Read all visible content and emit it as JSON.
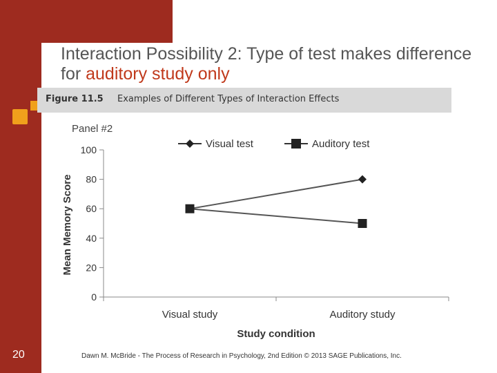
{
  "slide": {
    "title_part1": "Interaction Possibility 2: Type of test makes difference for ",
    "title_accent": "auditory study only",
    "figure_label": "Figure 11.5",
    "figure_caption": "Examples of Different Types of Interaction Effects",
    "page_number": "20",
    "footer": "Dawn M. McBride - The Process of Research in Psychology, 2nd Edition © 2013 SAGE Publications, Inc."
  },
  "colors": {
    "sidebar": "#9e2b1f",
    "bullet": "#f0a01c",
    "accent": "#c0391b"
  },
  "chart_data": {
    "type": "line",
    "panel_label": "Panel #2",
    "categories": [
      "Visual study",
      "Auditory study"
    ],
    "series": [
      {
        "name": "Visual test",
        "marker": "diamond",
        "values": [
          60,
          80
        ]
      },
      {
        "name": "Auditory test",
        "marker": "square",
        "values": [
          60,
          50
        ]
      }
    ],
    "xlabel": "Study condition",
    "ylabel": "Mean Memory Score",
    "ylim": [
      0,
      100
    ],
    "yticks": [
      0,
      20,
      40,
      60,
      80,
      100
    ],
    "legend_position": "top"
  }
}
